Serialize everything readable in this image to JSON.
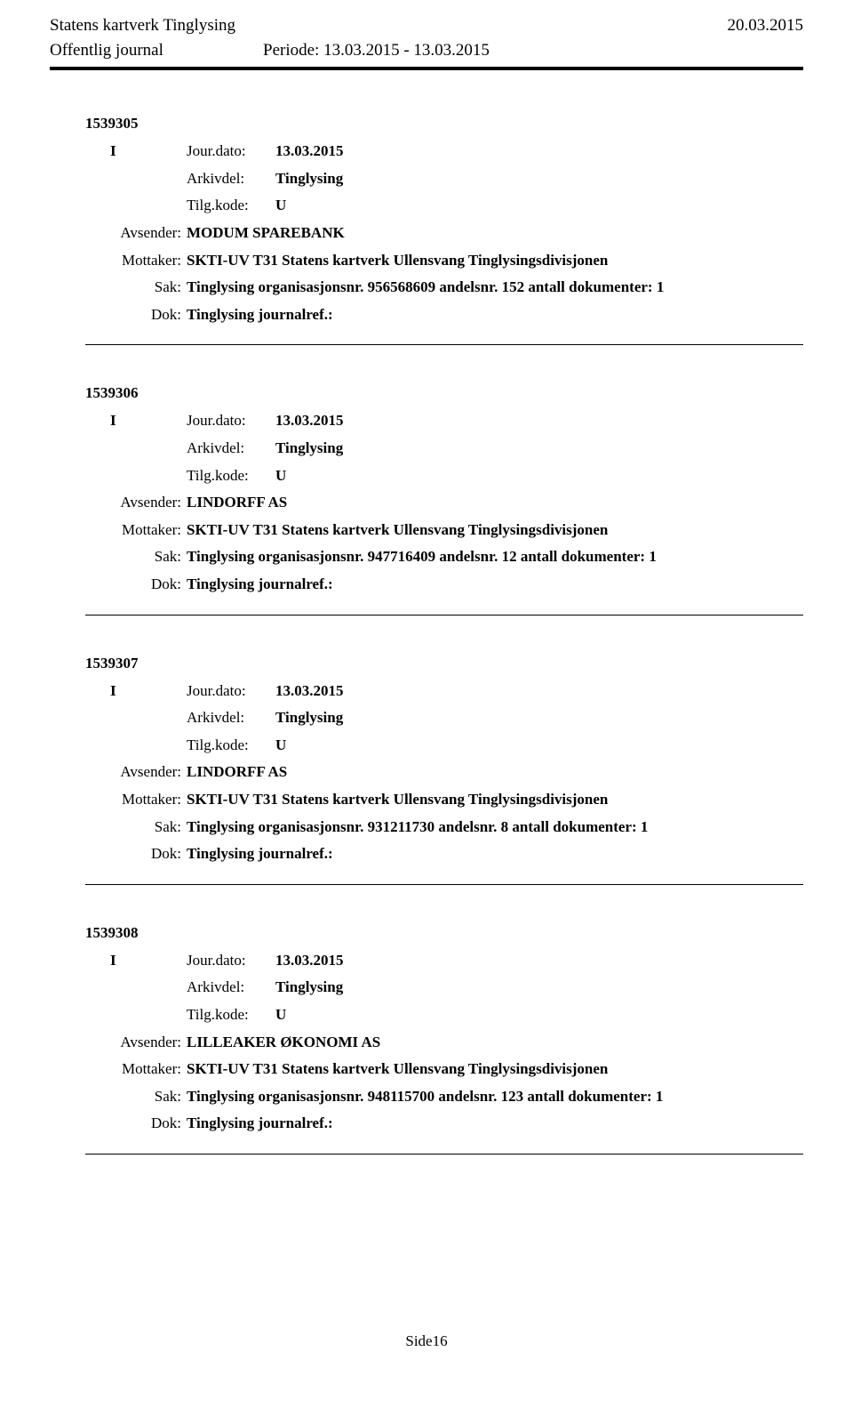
{
  "header": {
    "org": "Statens kartverk Tinglysing",
    "date": "20.03.2015",
    "journal_label": "Offentlig journal",
    "period_label": "Periode:",
    "period_value": "13.03.2015 - 13.03.2015"
  },
  "labels": {
    "jour_dato": "Jour.dato:",
    "arkivdel": "Arkivdel:",
    "tilgkode": "Tilg.kode:",
    "avsender": "Avsender:",
    "mottaker": "Mottaker:",
    "sak": "Sak:",
    "dok": "Dok:"
  },
  "entries": [
    {
      "id": "1539305",
      "io": "I",
      "jour_dato": "13.03.2015",
      "arkivdel": "Tinglysing",
      "tilgkode": "U",
      "avsender": "MODUM SPAREBANK",
      "mottaker": "SKTI-UV T31 Statens kartverk Ullensvang Tinglysingsdivisjonen",
      "sak": "Tinglysing organisasjonsnr. 956568609 andelsnr. 152 antall dokumenter: 1",
      "dok": "Tinglysing journalref.:"
    },
    {
      "id": "1539306",
      "io": "I",
      "jour_dato": "13.03.2015",
      "arkivdel": "Tinglysing",
      "tilgkode": "U",
      "avsender": "LINDORFF AS",
      "mottaker": "SKTI-UV T31 Statens kartverk Ullensvang Tinglysingsdivisjonen",
      "sak": "Tinglysing organisasjonsnr. 947716409 andelsnr. 12 antall dokumenter: 1",
      "dok": "Tinglysing journalref.:"
    },
    {
      "id": "1539307",
      "io": "I",
      "jour_dato": "13.03.2015",
      "arkivdel": "Tinglysing",
      "tilgkode": "U",
      "avsender": "LINDORFF AS",
      "mottaker": "SKTI-UV T31 Statens kartverk Ullensvang Tinglysingsdivisjonen",
      "sak": "Tinglysing organisasjonsnr. 931211730 andelsnr. 8 antall dokumenter: 1",
      "dok": "Tinglysing journalref.:"
    },
    {
      "id": "1539308",
      "io": "I",
      "jour_dato": "13.03.2015",
      "arkivdel": "Tinglysing",
      "tilgkode": "U",
      "avsender": "LILLEAKER ØKONOMI AS",
      "mottaker": "SKTI-UV T31 Statens kartverk Ullensvang Tinglysingsdivisjonen",
      "sak": "Tinglysing organisasjonsnr. 948115700 andelsnr. 123 antall dokumenter: 1",
      "dok": "Tinglysing journalref.:"
    }
  ],
  "footer": {
    "page": "Side16"
  }
}
